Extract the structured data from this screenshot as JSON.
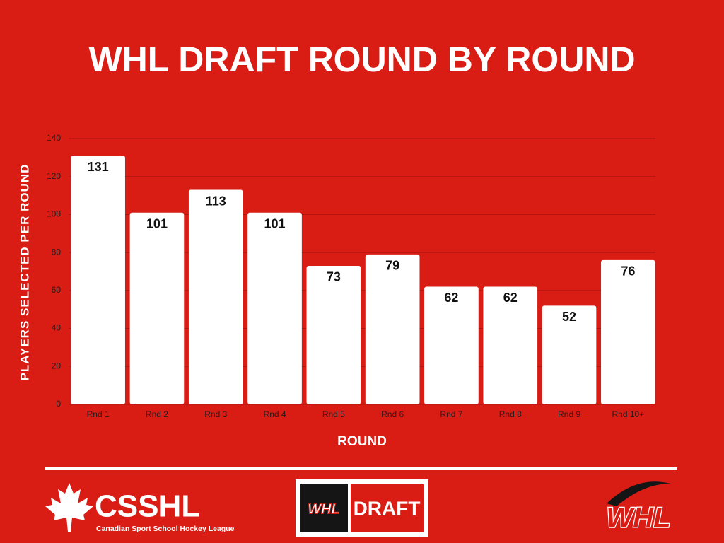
{
  "chart_data": {
    "type": "bar",
    "title": "WHL DRAFT ROUND BY ROUND",
    "x_label": "ROUND",
    "y_label": "PLAYERS SELECTED PER ROUND",
    "categories": [
      "Rnd 1",
      "Rnd 2",
      "Rnd 3",
      "Rnd 4",
      "Rnd 5",
      "Rnd 6",
      "Rnd 7",
      "Rnd 8",
      "Rnd 9",
      "Rnd 10+"
    ],
    "values": [
      131,
      101,
      113,
      101,
      73,
      79,
      62,
      62,
      52,
      76
    ],
    "color": "#ffffff",
    "ylim": [
      0,
      140
    ],
    "yticks": [
      0,
      20,
      40,
      60,
      80,
      100,
      120,
      140
    ],
    "grid": true
  },
  "logos": {
    "csshl": "CSSHL",
    "csshl_full": "Canadian Sport School Hockey League",
    "center_whl": "WHL",
    "center_draft": "DRAFT",
    "right_whl": "WHL"
  }
}
